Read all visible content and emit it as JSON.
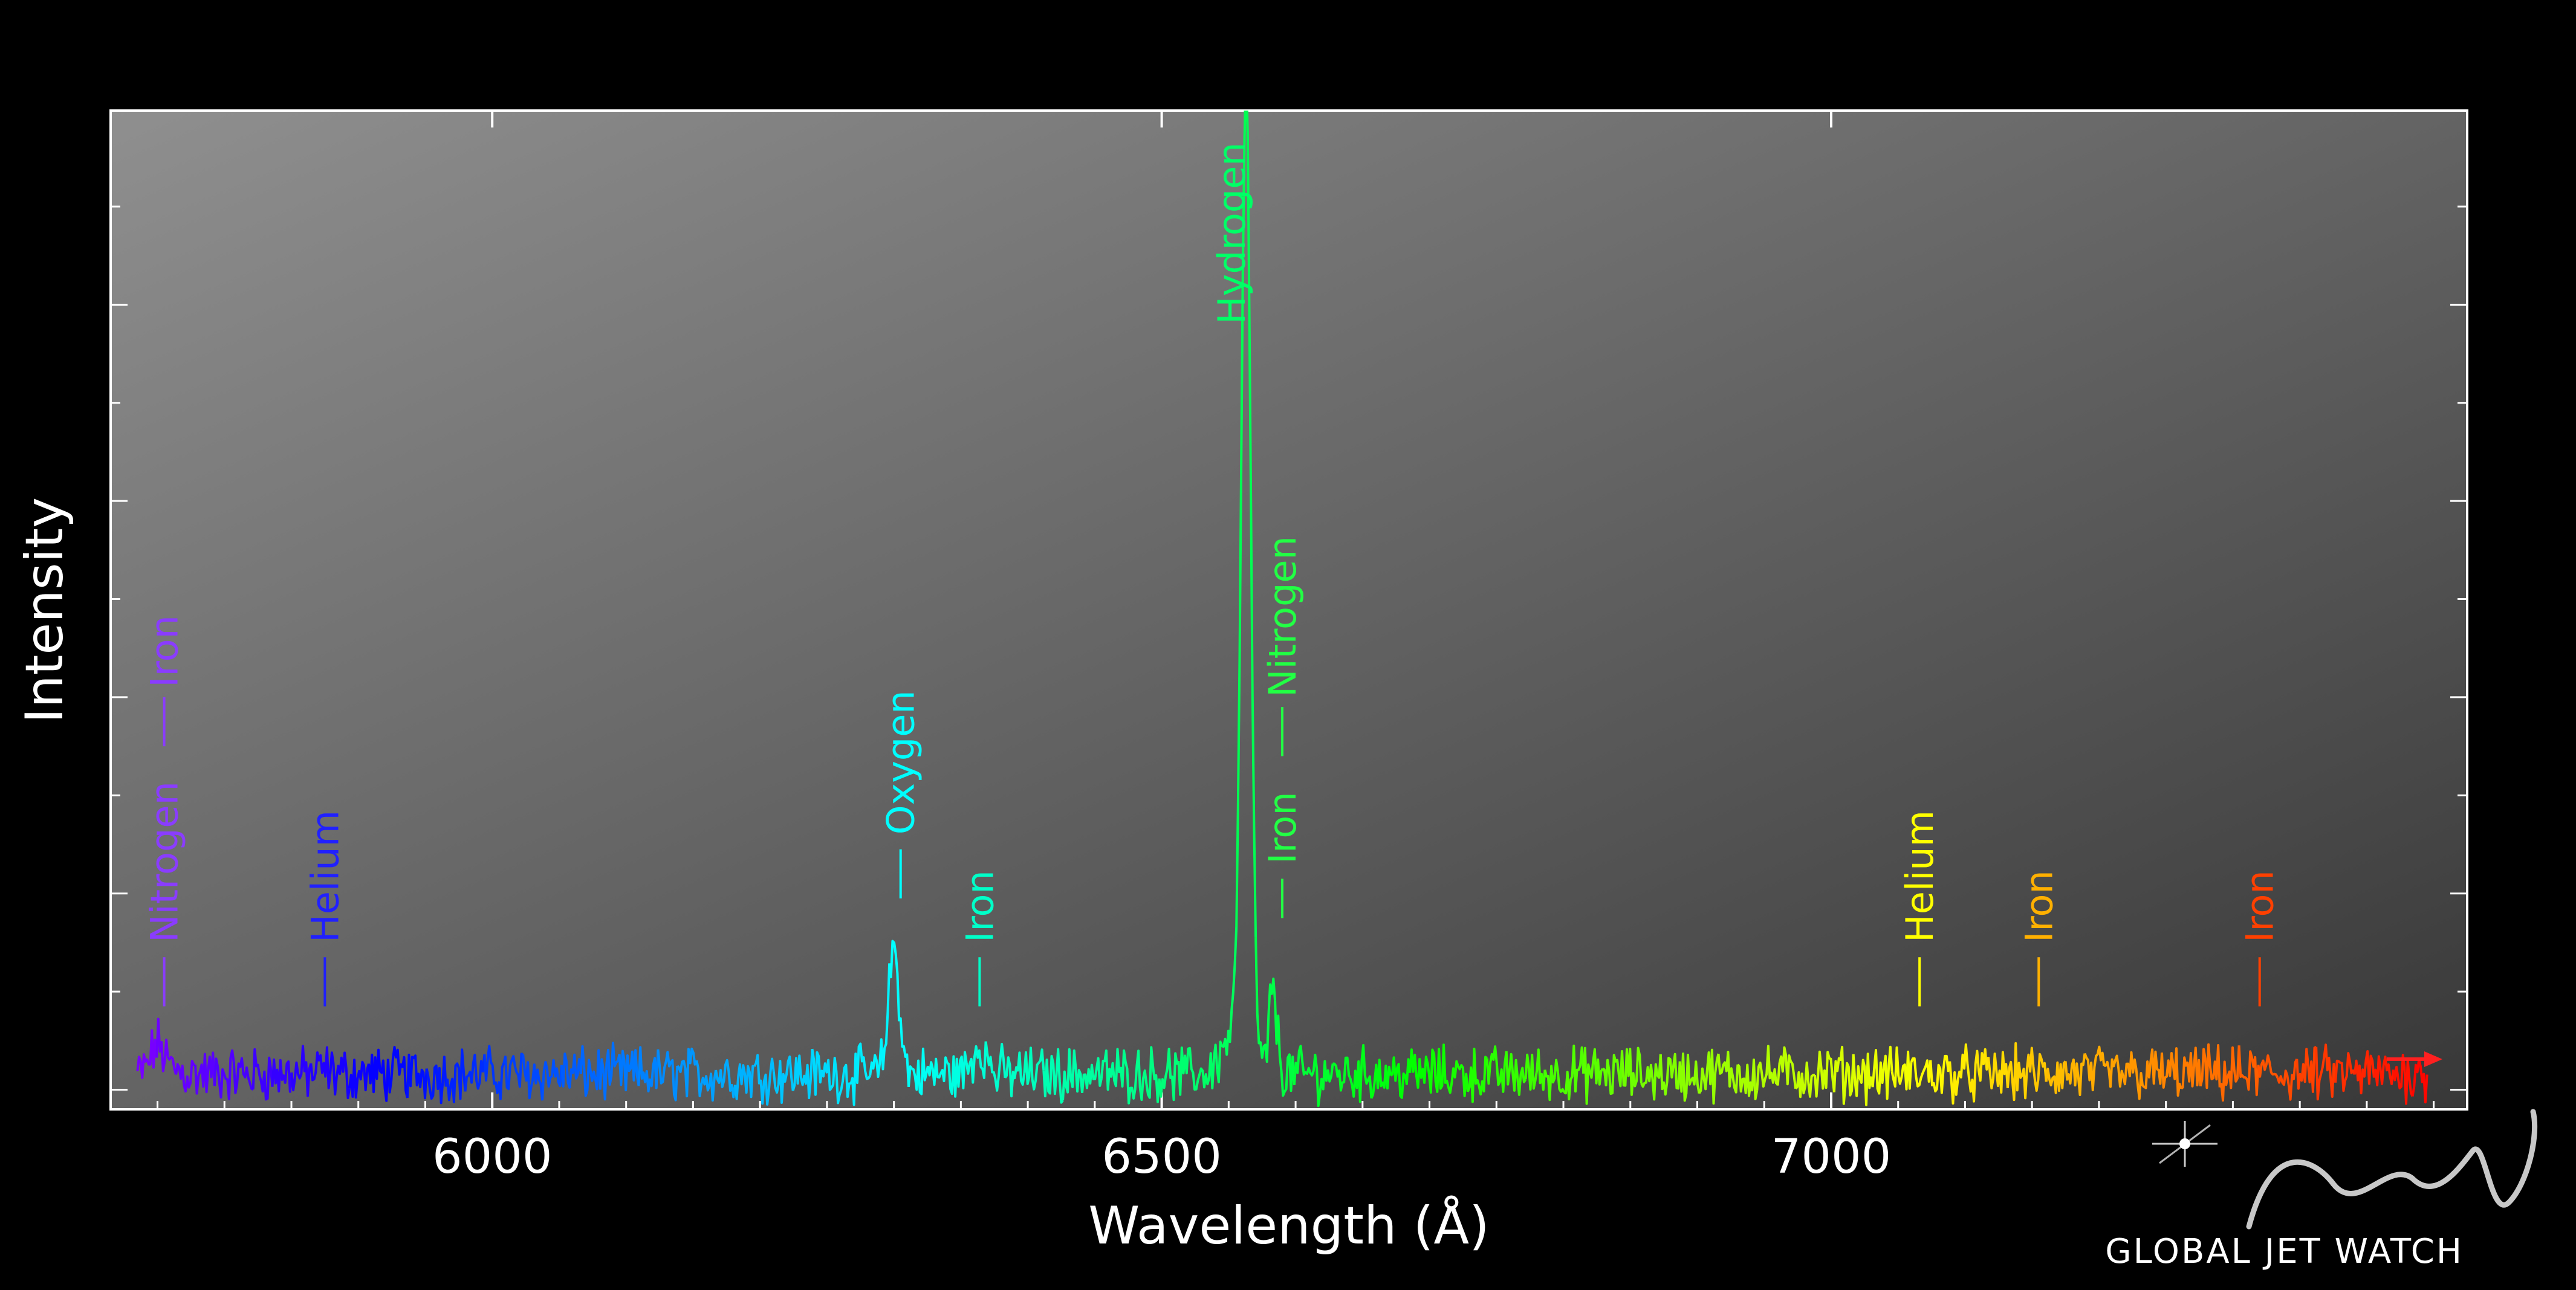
{
  "chart_data": {
    "type": "line",
    "title": "",
    "xlabel": "Wavelength (Å)",
    "ylabel": "Intensity",
    "xlim": [
      5715,
      7475
    ],
    "ylim": [
      0,
      100
    ],
    "x_ticks": [
      6000,
      6500,
      7000
    ],
    "x_tick_labels": [
      "6000",
      "6500",
      "7000"
    ],
    "y_tick_labels_shown": false,
    "grid": false,
    "legend": "none",
    "spectrum": {
      "x_start": 5735,
      "x_end": 7445,
      "continuum": 3.6,
      "noise_amplitude": 2.2,
      "features": [
        {
          "x": 5750,
          "peak": 6.5,
          "width": 5
        },
        {
          "x": 5762,
          "peak": 4.0,
          "width": 6
        },
        {
          "x": 5875,
          "peak": 4.0,
          "width": 4
        },
        {
          "x": 6300,
          "peak": 16.5,
          "width": 4
        },
        {
          "x": 6364,
          "peak": 6.5,
          "width": 5
        },
        {
          "x": 6563,
          "peak": 101,
          "width": 3.5
        },
        {
          "x": 6555,
          "peak": 8.0,
          "width": 9
        },
        {
          "x": 6583,
          "peak": 12.0,
          "width": 3
        },
        {
          "x": 7065,
          "peak": 3.5,
          "width": 3
        },
        {
          "x": 7155,
          "peak": 3.5,
          "width": 4
        },
        {
          "x": 7320,
          "peak": 3.5,
          "width": 5
        }
      ]
    },
    "annotations": [
      {
        "label": "Nitrogen",
        "x": 5755,
        "tick_y": [
          10.5,
          15.5
        ],
        "text_y": 17,
        "color": "#8a3cff"
      },
      {
        "label": "Iron",
        "x": 5755,
        "tick_y": [
          37,
          42
        ],
        "text_y": 43,
        "color": "#8a3cff"
      },
      {
        "label": "Helium",
        "x": 5875,
        "tick_y": [
          10.5,
          15.5
        ],
        "text_y": 17,
        "color": "#2020ff"
      },
      {
        "label": "Oxygen",
        "x": 6305,
        "tick_y": [
          21.5,
          26.5
        ],
        "text_y": 28,
        "color": "#00ffff"
      },
      {
        "label": "Iron",
        "x": 6364,
        "tick_y": [
          10.5,
          15.5
        ],
        "text_y": 17,
        "color": "#00ffc8"
      },
      {
        "label": "Hydrogen",
        "x": 6552,
        "tick_y": null,
        "text_y": 80,
        "color": "#00ff66"
      },
      {
        "label": "Nitrogen",
        "x": 6590,
        "tick_y": [
          36,
          41
        ],
        "text_y": 42,
        "color": "#22ff44"
      },
      {
        "label": "Iron",
        "x": 6590,
        "tick_y": [
          19.5,
          23.5
        ],
        "text_y": 25,
        "color": "#22ff44"
      },
      {
        "label": "Helium",
        "x": 7066,
        "tick_y": [
          10.5,
          15.5
        ],
        "text_y": 17,
        "color": "#ffff00"
      },
      {
        "label": "Iron",
        "x": 7155,
        "tick_y": [
          10.5,
          15.5
        ],
        "text_y": 17,
        "color": "#ffb000"
      },
      {
        "label": "Iron",
        "x": 7320,
        "tick_y": [
          10.5,
          15.5
        ],
        "text_y": 17,
        "color": "#ff4000"
      }
    ]
  },
  "logo": {
    "text": "GLOBAL JET WATCH"
  },
  "colors": {
    "background": "#000000",
    "plot_gradient_start": "#8f8f8f",
    "plot_gradient_end": "#383838",
    "arrow": "#ff2020"
  }
}
